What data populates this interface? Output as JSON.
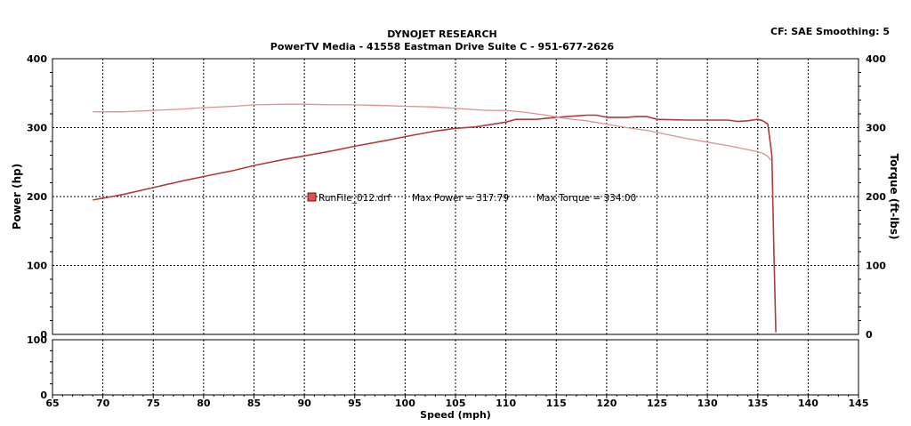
{
  "header": {
    "title": "DYNOJET RESEARCH",
    "subtitle": "PowerTV Media - 41558 Eastman Drive Suite C - 951-677-2626",
    "corner_info": "CF: SAE  Smoothing: 5"
  },
  "colors": {
    "power": "#b33a3a",
    "torque": "#e09090",
    "grid": "#000000",
    "legend_swatch": "#e05050"
  },
  "chart_data": {
    "type": "line",
    "title": "DYNOJET RESEARCH",
    "subtitle": "PowerTV Media - 41558 Eastman Drive Suite C - 951-677-2626",
    "xlabel": "Speed (mph)",
    "ylabel_left": "Power (hp)",
    "ylabel_right": "Torque (ft-lbs)",
    "xlim": [
      65,
      145
    ],
    "ylim": [
      0,
      400
    ],
    "x_ticks": [
      65,
      70,
      75,
      80,
      85,
      90,
      95,
      100,
      105,
      110,
      115,
      120,
      125,
      130,
      135,
      140,
      145
    ],
    "y_ticks": [
      0,
      100,
      200,
      300,
      400
    ],
    "sub_panel_ylim": [
      0,
      100
    ],
    "sub_panel_y_ticks": [
      0,
      100
    ],
    "grid": true,
    "legend": {
      "run_file": "RunFile_012.drf",
      "max_power_label": "Max Power = 317.79",
      "max_torque_label": "Max Torque = 334.00",
      "placement": "center-left"
    },
    "series": [
      {
        "name": "Power",
        "axis": "left",
        "x": [
          69,
          72,
          75,
          78,
          80,
          83,
          85,
          88,
          90,
          93,
          95,
          98,
          100,
          103,
          105,
          107,
          110,
          111,
          113,
          115,
          117,
          118,
          119,
          120,
          122,
          123,
          124,
          125,
          128,
          130,
          132,
          133,
          134,
          135,
          135.5,
          136,
          136.4,
          136.6,
          136.8
        ],
        "values": [
          195,
          203,
          213,
          223,
          229,
          238,
          245,
          254,
          259,
          267,
          273,
          281,
          287,
          295,
          299,
          301,
          308,
          312,
          312,
          315,
          317,
          318,
          318,
          315,
          315,
          316,
          316,
          312,
          311,
          311,
          311,
          309,
          310,
          312,
          310,
          305,
          260,
          120,
          3
        ]
      },
      {
        "name": "Torque",
        "axis": "right",
        "x": [
          69,
          72,
          75,
          78,
          80,
          83,
          85,
          88,
          90,
          93,
          95,
          98,
          100,
          103,
          105,
          108,
          110,
          112,
          114,
          116,
          118,
          120,
          122,
          124,
          126,
          128,
          130,
          132,
          134,
          135,
          135.5,
          136,
          136.3
        ],
        "values": [
          323,
          323,
          325,
          327,
          329,
          331,
          333,
          334,
          334,
          333,
          333,
          332,
          331,
          330,
          328,
          325,
          325,
          322,
          318,
          313,
          310,
          305,
          300,
          296,
          290,
          284,
          279,
          274,
          268,
          265,
          263,
          258,
          253
        ]
      }
    ]
  }
}
